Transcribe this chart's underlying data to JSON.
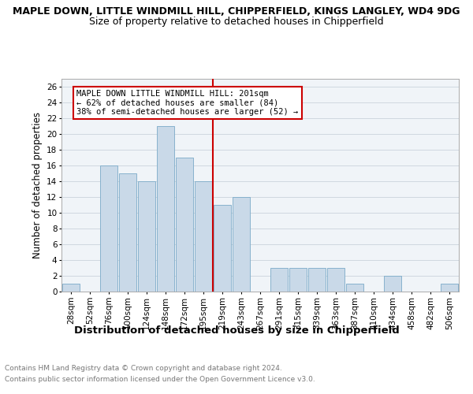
{
  "title_line1": "MAPLE DOWN, LITTLE WINDMILL HILL, CHIPPERFIELD, KINGS LANGLEY, WD4 9DG",
  "title_line2": "Size of property relative to detached houses in Chipperfield",
  "xlabel": "Distribution of detached houses by size in Chipperfield",
  "ylabel": "Number of detached properties",
  "categories": [
    "28sqm",
    "52sqm",
    "76sqm",
    "100sqm",
    "124sqm",
    "148sqm",
    "172sqm",
    "195sqm",
    "219sqm",
    "243sqm",
    "267sqm",
    "291sqm",
    "315sqm",
    "339sqm",
    "363sqm",
    "387sqm",
    "410sqm",
    "434sqm",
    "458sqm",
    "482sqm",
    "506sqm"
  ],
  "values": [
    1,
    0,
    16,
    15,
    14,
    21,
    17,
    14,
    11,
    12,
    0,
    3,
    3,
    3,
    3,
    1,
    0,
    2,
    0,
    0,
    1
  ],
  "bar_color": "#c9d9e8",
  "bar_edge_color": "#7aaac8",
  "vline_x_index": 7.5,
  "vline_color": "#cc0000",
  "annotation_text": "MAPLE DOWN LITTLE WINDMILL HILL: 201sqm\n← 62% of detached houses are smaller (84)\n38% of semi-detached houses are larger (52) →",
  "annotation_box_edge": "#cc0000",
  "ylim": [
    0,
    27
  ],
  "yticks": [
    0,
    2,
    4,
    6,
    8,
    10,
    12,
    14,
    16,
    18,
    20,
    22,
    24,
    26
  ],
  "grid_color": "#d0d8e0",
  "background_color": "#f0f4f8",
  "footer_line1": "Contains HM Land Registry data © Crown copyright and database right 2024.",
  "footer_line2": "Contains public sector information licensed under the Open Government Licence v3.0.",
  "title_fontsize": 9,
  "subtitle_fontsize": 9,
  "xlabel_fontsize": 9.5,
  "ylabel_fontsize": 8.5,
  "tick_fontsize": 7.5,
  "annotation_fontsize": 7.5,
  "footer_fontsize": 6.5
}
